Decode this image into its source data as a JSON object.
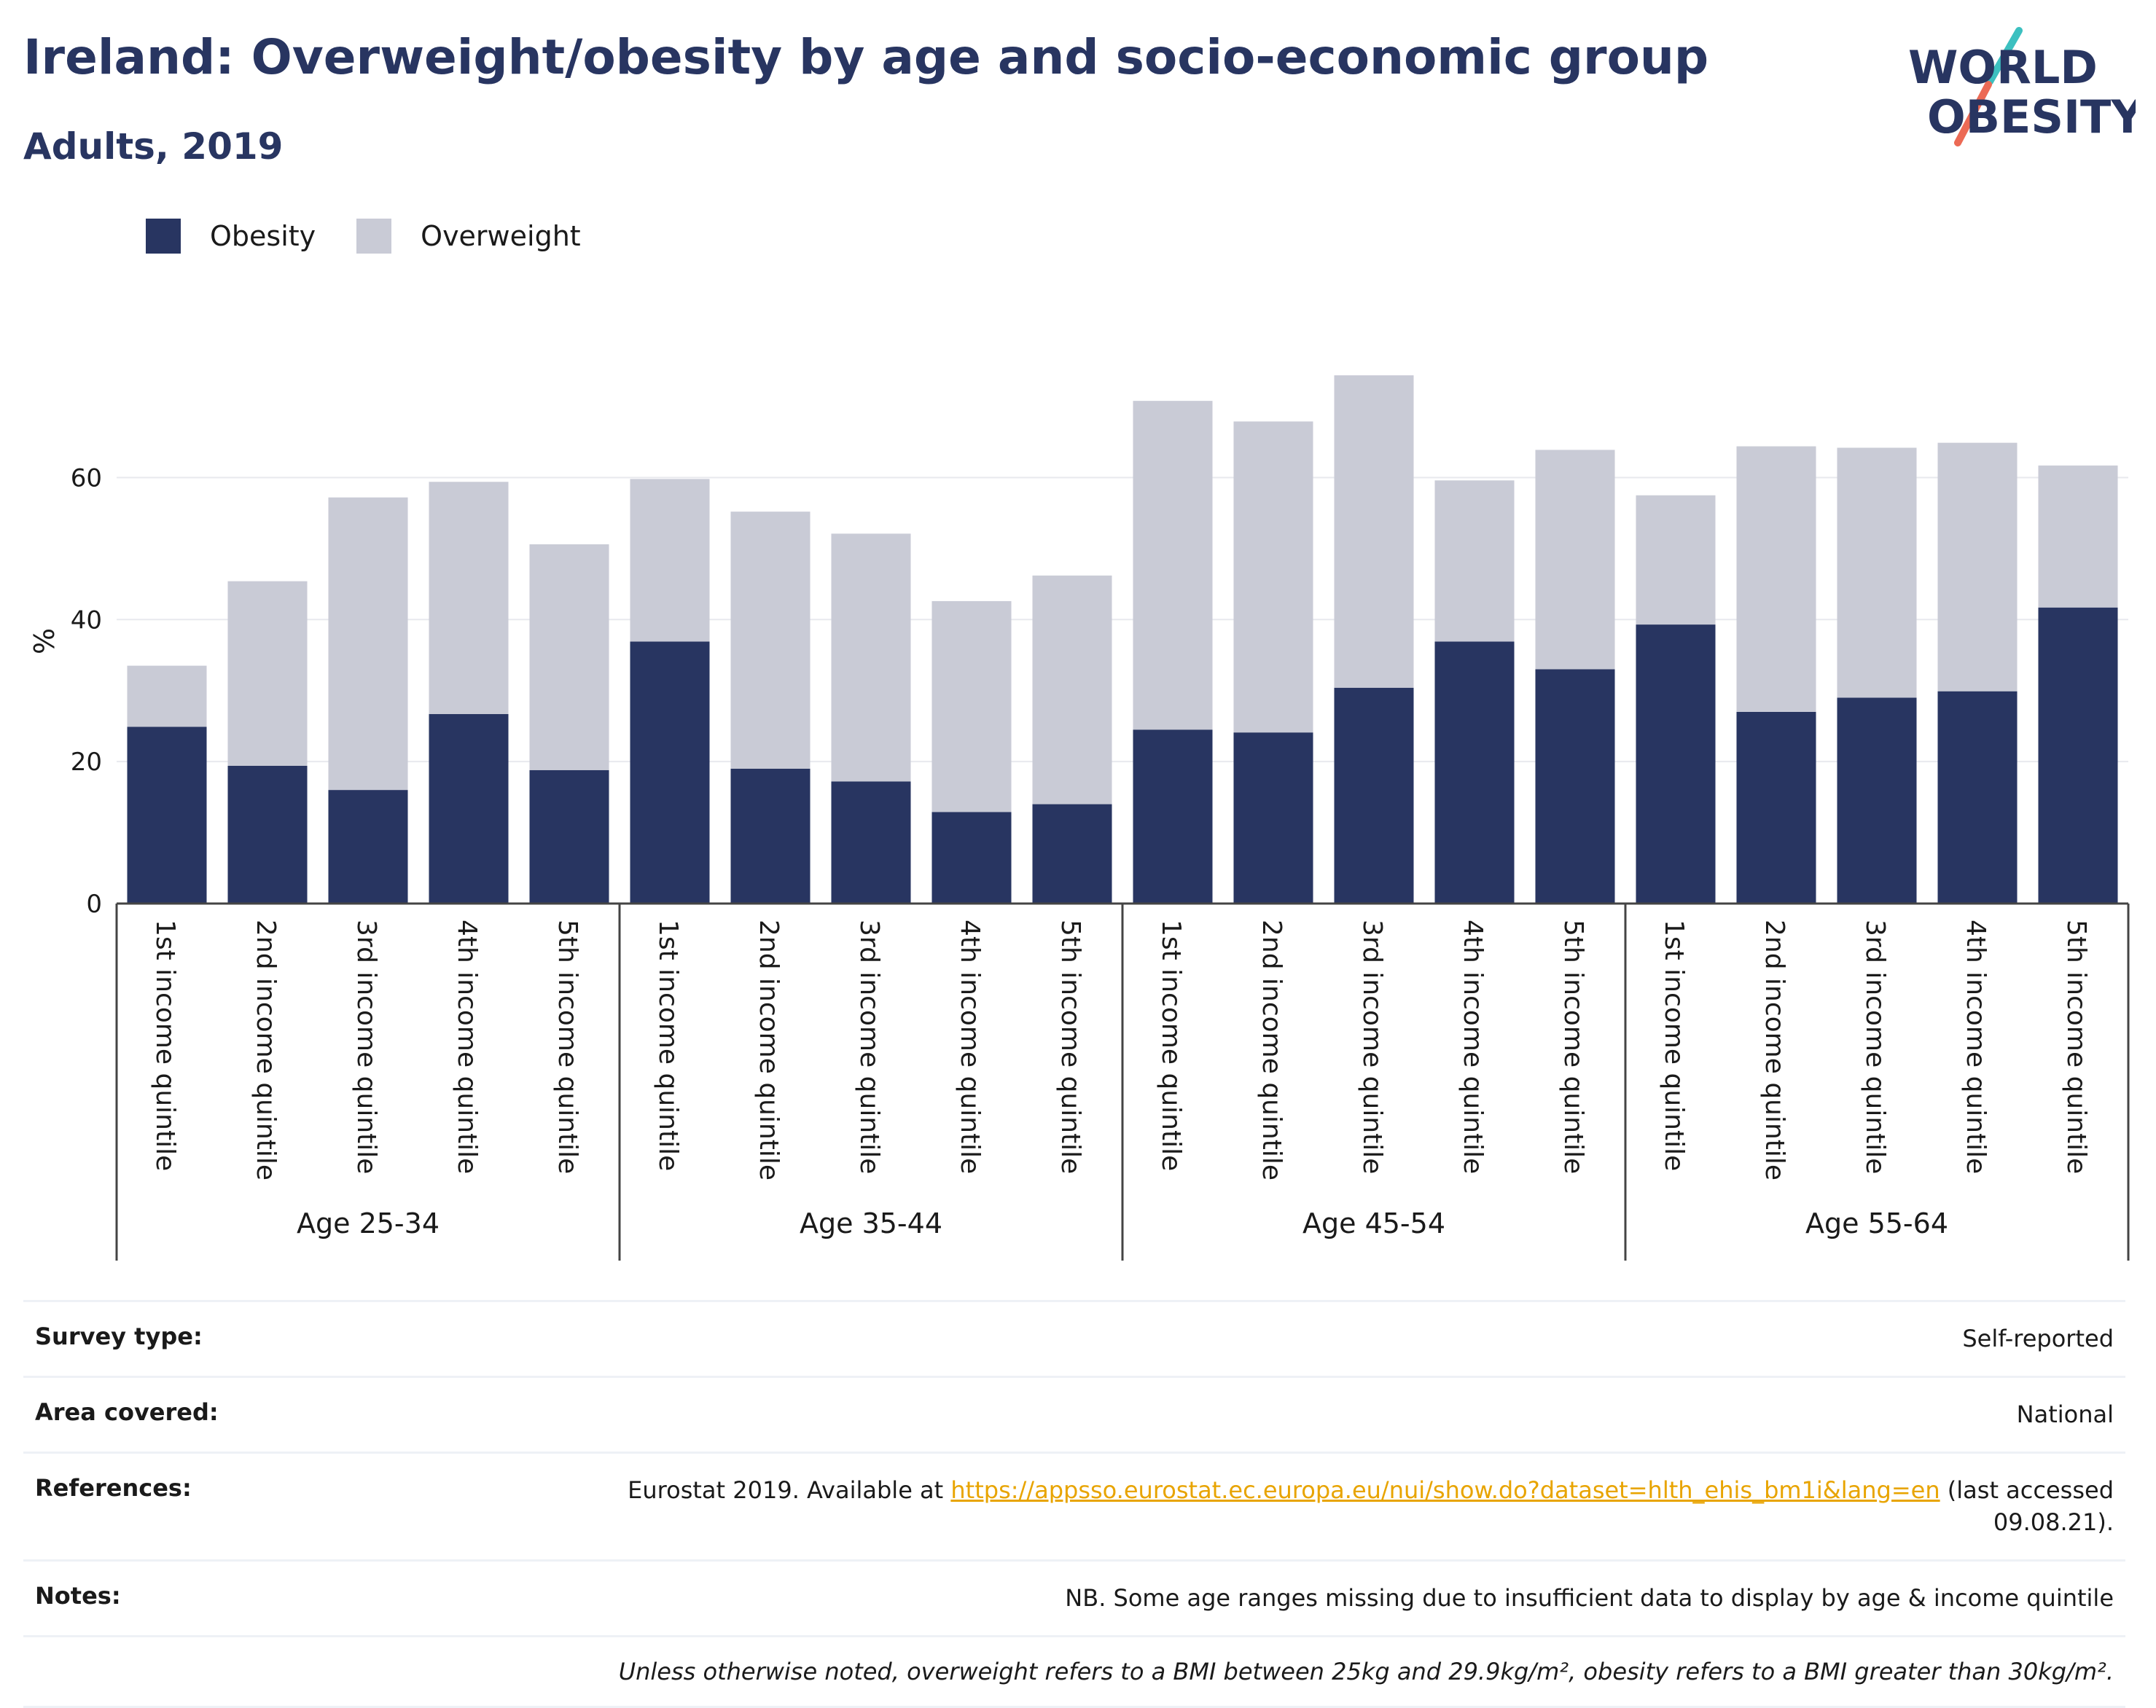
{
  "header": {
    "title": "Ireland: Overweight/obesity by age and socio-economic group",
    "subtitle": "Adults, 2019",
    "logo_line1": "WORLD",
    "logo_line2": "OBESITY"
  },
  "legend": {
    "items": [
      {
        "label": "Obesity",
        "color": "#283561"
      },
      {
        "label": "Overweight",
        "color": "#c9cbd6"
      }
    ]
  },
  "chart_data": {
    "type": "bar",
    "stacked": true,
    "ylabel": "%",
    "ylim": [
      0,
      78
    ],
    "yticks": [
      0,
      20,
      40,
      60
    ],
    "grid": true,
    "legend_position": "top-left",
    "groups": [
      {
        "label": "Age 25-34",
        "categories": [
          "1st income quintile",
          "2nd income quintile",
          "3rd income quintile",
          "4th income quintile",
          "5th income quintile"
        ]
      },
      {
        "label": "Age 35-44",
        "categories": [
          "1st income quintile",
          "2nd income quintile",
          "3rd income quintile",
          "4th income quintile",
          "5th income quintile"
        ]
      },
      {
        "label": "Age 45-54",
        "categories": [
          "1st income quintile",
          "2nd income quintile",
          "3rd income quintile",
          "4th income quintile",
          "5th income quintile"
        ]
      },
      {
        "label": "Age 55-64",
        "categories": [
          "1st income quintile",
          "2nd income quintile",
          "3rd income quintile",
          "4th income quintile",
          "5th income quintile"
        ]
      }
    ],
    "series": [
      {
        "name": "Obesity",
        "color": "#283561",
        "values": [
          24.9,
          19.4,
          16.0,
          26.7,
          18.8,
          36.9,
          19.0,
          17.2,
          12.9,
          14.0,
          24.5,
          24.1,
          30.4,
          36.9,
          33.0,
          39.3,
          27.0,
          29.0,
          29.9,
          41.7
        ]
      },
      {
        "name": "Overweight",
        "color": "#c9cbd6",
        "values": [
          8.6,
          26.0,
          41.2,
          32.7,
          31.8,
          22.9,
          36.2,
          34.9,
          29.7,
          32.2,
          46.3,
          43.8,
          44.0,
          22.7,
          30.9,
          18.2,
          37.4,
          35.2,
          35.0,
          20.0
        ]
      }
    ]
  },
  "meta": {
    "survey_type": {
      "label": "Survey type:",
      "value": "Self-reported"
    },
    "area_covered": {
      "label": "Area covered:",
      "value": "National"
    },
    "references": {
      "label": "References:",
      "text_before": "Eurostat 2019. Available at ",
      "link": "https://appsso.eurostat.ec.europa.eu/nui/show.do?dataset=hlth_ehis_bm1i&lang=en",
      "text_after": " (last accessed 09.08.21)."
    },
    "notes": {
      "label": "Notes:",
      "value": "NB. Some age ranges missing due to insufficient data to display by age & income quintile"
    },
    "footnote": "Unless otherwise noted, overweight refers to a BMI between 25kg and 29.9kg/m², obesity refers to a BMI greater than 30kg/m²."
  }
}
